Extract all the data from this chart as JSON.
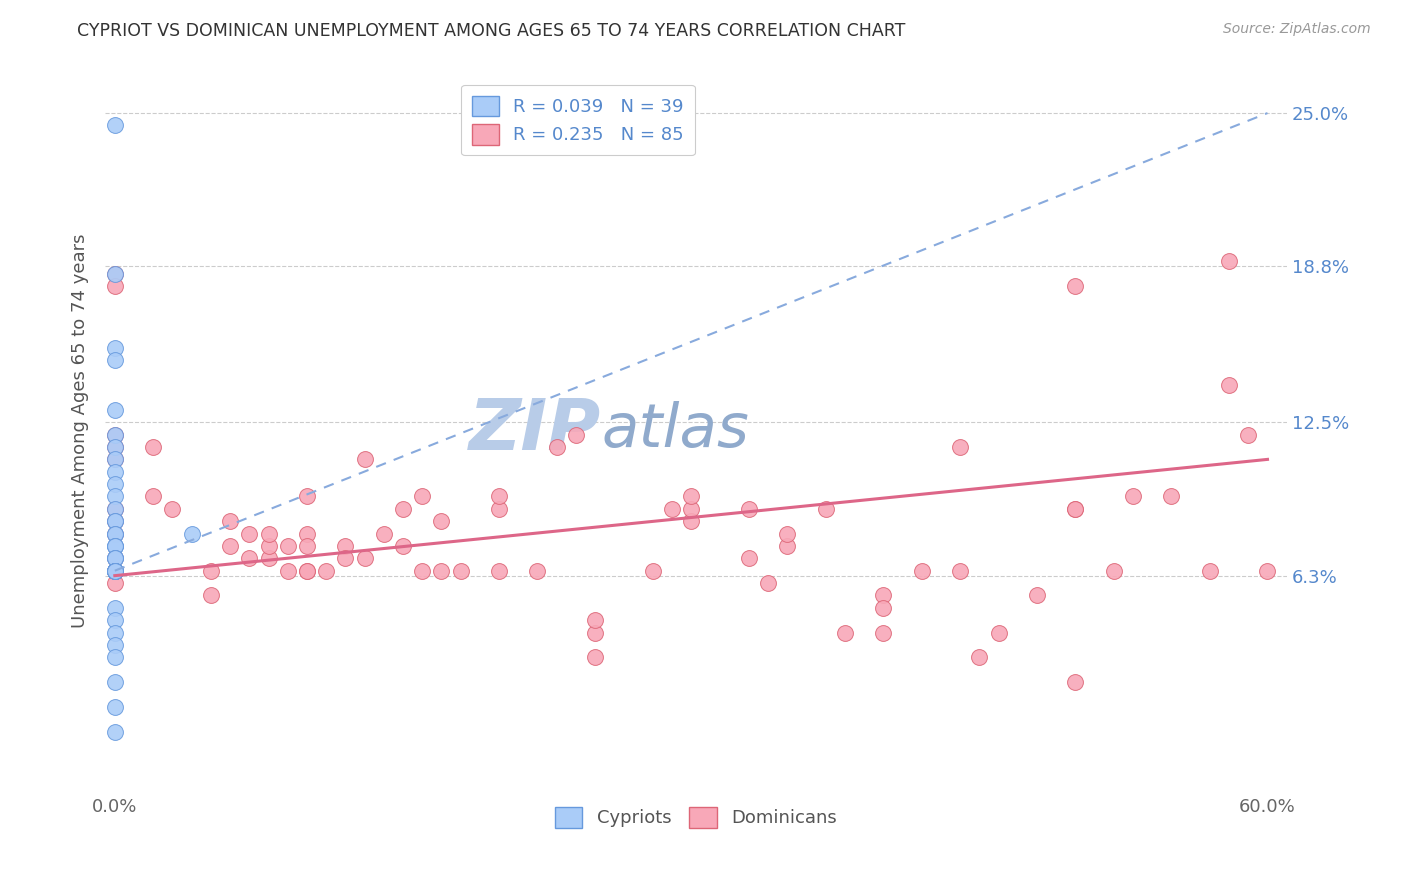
{
  "title": "CYPRIOT VS DOMINICAN UNEMPLOYMENT AMONG AGES 65 TO 74 YEARS CORRELATION CHART",
  "source": "Source: ZipAtlas.com",
  "ylabel": "Unemployment Among Ages 65 to 74 years",
  "ytick_labels": [
    "6.3%",
    "12.5%",
    "18.8%",
    "25.0%"
  ],
  "ytick_values": [
    0.063,
    0.125,
    0.188,
    0.25
  ],
  "xmin": 0.0,
  "xmax": 0.6,
  "ymin": -0.025,
  "ymax": 0.268,
  "legend_cypriot_r": "R = 0.039",
  "legend_cypriot_n": "N = 39",
  "legend_dominican_r": "R = 0.235",
  "legend_dominican_n": "N = 85",
  "cypriot_color": "#aaccf8",
  "cypriot_edge_color": "#6699dd",
  "dominican_color": "#f8a8b8",
  "dominican_edge_color": "#dd6677",
  "trend_cypriot_color": "#88aadd",
  "trend_dominican_color": "#dd6688",
  "watermark_zip_color": "#c8d8f0",
  "watermark_atlas_color": "#a0b8d8",
  "cypriot_trend_x0": 0.0,
  "cypriot_trend_y0": 0.065,
  "cypriot_trend_x1": 0.6,
  "cypriot_trend_y1": 0.25,
  "dominican_trend_x0": 0.0,
  "dominican_trend_y0": 0.063,
  "dominican_trend_x1": 0.6,
  "dominican_trend_y1": 0.11,
  "cypriot_x": [
    0.0,
    0.0,
    0.0,
    0.0,
    0.0,
    0.0,
    0.0,
    0.0,
    0.0,
    0.0,
    0.0,
    0.0,
    0.0,
    0.0,
    0.0,
    0.0,
    0.0,
    0.0,
    0.0,
    0.0,
    0.0,
    0.0,
    0.0,
    0.0,
    0.0,
    0.0,
    0.0,
    0.0,
    0.0,
    0.0,
    0.0,
    0.0,
    0.0,
    0.0,
    0.0,
    0.0,
    0.0,
    0.04,
    0.0
  ],
  "cypriot_y": [
    0.245,
    0.185,
    0.155,
    0.15,
    0.13,
    0.12,
    0.115,
    0.11,
    0.105,
    0.1,
    0.095,
    0.09,
    0.085,
    0.085,
    0.08,
    0.08,
    0.075,
    0.075,
    0.075,
    0.07,
    0.07,
    0.07,
    0.065,
    0.065,
    0.065,
    0.065,
    0.065,
    0.065,
    0.065,
    0.065,
    0.05,
    0.045,
    0.04,
    0.035,
    0.03,
    0.02,
    0.01,
    0.08,
    0.0
  ],
  "dominican_x": [
    0.0,
    0.0,
    0.0,
    0.0,
    0.0,
    0.0,
    0.0,
    0.0,
    0.0,
    0.0,
    0.0,
    0.02,
    0.02,
    0.03,
    0.05,
    0.05,
    0.06,
    0.06,
    0.07,
    0.07,
    0.08,
    0.08,
    0.08,
    0.09,
    0.09,
    0.1,
    0.1,
    0.1,
    0.1,
    0.1,
    0.11,
    0.12,
    0.12,
    0.13,
    0.13,
    0.14,
    0.15,
    0.15,
    0.16,
    0.16,
    0.17,
    0.17,
    0.18,
    0.2,
    0.2,
    0.2,
    0.22,
    0.23,
    0.24,
    0.25,
    0.25,
    0.25,
    0.28,
    0.29,
    0.3,
    0.3,
    0.3,
    0.33,
    0.33,
    0.34,
    0.35,
    0.35,
    0.37,
    0.38,
    0.4,
    0.4,
    0.4,
    0.42,
    0.44,
    0.45,
    0.46,
    0.48,
    0.5,
    0.5,
    0.5,
    0.52,
    0.53,
    0.55,
    0.57,
    0.58,
    0.58,
    0.59,
    0.6,
    0.44,
    0.5
  ],
  "dominican_y": [
    0.185,
    0.18,
    0.12,
    0.115,
    0.11,
    0.09,
    0.085,
    0.08,
    0.07,
    0.065,
    0.06,
    0.115,
    0.095,
    0.09,
    0.065,
    0.055,
    0.085,
    0.075,
    0.07,
    0.08,
    0.07,
    0.075,
    0.08,
    0.075,
    0.065,
    0.095,
    0.065,
    0.065,
    0.08,
    0.075,
    0.065,
    0.075,
    0.07,
    0.07,
    0.11,
    0.08,
    0.075,
    0.09,
    0.065,
    0.095,
    0.065,
    0.085,
    0.065,
    0.065,
    0.09,
    0.095,
    0.065,
    0.115,
    0.12,
    0.04,
    0.045,
    0.03,
    0.065,
    0.09,
    0.085,
    0.09,
    0.095,
    0.07,
    0.09,
    0.06,
    0.075,
    0.08,
    0.09,
    0.04,
    0.04,
    0.055,
    0.05,
    0.065,
    0.065,
    0.03,
    0.04,
    0.055,
    0.09,
    0.18,
    0.09,
    0.065,
    0.095,
    0.095,
    0.065,
    0.14,
    0.19,
    0.12,
    0.065,
    0.115,
    0.02
  ]
}
